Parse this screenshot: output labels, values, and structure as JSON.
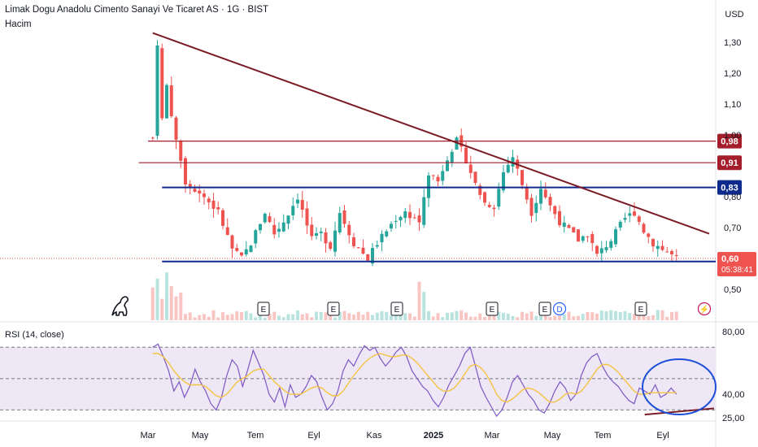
{
  "header": {
    "title": "Limak Dogu Anadolu Cimento Sanayi Ve Ticaret AS · 1G · BIST",
    "volume_label": "Hacim",
    "currency": "USD",
    "rsi_label": "RSI (14, close)"
  },
  "colors": {
    "up": "#26a69a",
    "down": "#ef5350",
    "trendline": "#7b1a25",
    "resistance": "#a31e2a",
    "support": "#0d2a8c",
    "rsi_line": "#7e57c2",
    "rsi_ma": "#f6c343",
    "rsi_band": "#ede7f6",
    "circle": "#1e4fd8"
  },
  "event_markers": [
    {
      "letter": "E",
      "x": "Jun 2024"
    },
    {
      "letter": "E",
      "x": "Aug 2024"
    },
    {
      "letter": "E",
      "x": "Oct 2024"
    },
    {
      "letter": "E",
      "x": "Mar 2025"
    },
    {
      "letter": "E",
      "x": "May 2025"
    },
    {
      "letter": "D",
      "x": "May 2025"
    },
    {
      "letter": "E",
      "x": "Aug 2025"
    },
    {
      "letter": "⚡",
      "x": "Oct 2025"
    }
  ],
  "chart_data": [
    {
      "type": "candlestick",
      "name": "price",
      "currency": "USD",
      "x_ticks": [
        "Mar",
        "May",
        "Tem",
        "Eyl",
        "Kas",
        "2025",
        "Mar",
        "May",
        "Tem",
        "Eyl"
      ],
      "y_ticks": [
        "1,30",
        "1,20",
        "1,10",
        "1,00",
        "0,90",
        "0,80",
        "0,70",
        "0,60",
        "0,50"
      ],
      "ylim": [
        0.52,
        1.33
      ],
      "close_path": [
        [
          0,
          0.68
        ],
        [
          2,
          1.3
        ],
        [
          3,
          1.05
        ],
        [
          4,
          1.16
        ],
        [
          6,
          0.98
        ],
        [
          8,
          0.85
        ],
        [
          12,
          0.8
        ],
        [
          15,
          0.75
        ],
        [
          18,
          0.63
        ],
        [
          20,
          0.6
        ],
        [
          22,
          0.65
        ],
        [
          25,
          0.75
        ],
        [
          27,
          0.68
        ],
        [
          29,
          0.72
        ],
        [
          32,
          0.8
        ],
        [
          35,
          0.66
        ],
        [
          37,
          0.68
        ],
        [
          39,
          0.64
        ],
        [
          41,
          0.75
        ],
        [
          44,
          0.65
        ],
        [
          47,
          0.6
        ],
        [
          49,
          0.65
        ],
        [
          53,
          0.73
        ],
        [
          55,
          0.75
        ],
        [
          58,
          0.72
        ],
        [
          60,
          0.88
        ],
        [
          62,
          0.85
        ],
        [
          64,
          0.93
        ],
        [
          66,
          0.98
        ],
        [
          68,
          0.92
        ],
        [
          70,
          0.84
        ],
        [
          72,
          0.78
        ],
        [
          74,
          0.77
        ],
        [
          76,
          0.88
        ],
        [
          78,
          0.93
        ],
        [
          80,
          0.84
        ],
        [
          82,
          0.75
        ],
        [
          84,
          0.83
        ],
        [
          86,
          0.77
        ],
        [
          88,
          0.72
        ],
        [
          90,
          0.69
        ],
        [
          92,
          0.66
        ],
        [
          94,
          0.68
        ],
        [
          96,
          0.61
        ],
        [
          99,
          0.66
        ],
        [
          102,
          0.73
        ],
        [
          104,
          0.75
        ],
        [
          106,
          0.69
        ],
        [
          108,
          0.65
        ],
        [
          110,
          0.63
        ],
        [
          113,
          0.6
        ]
      ],
      "trendline": {
        "from": [
          1,
          1.33
        ],
        "to": [
          120,
          0.68
        ]
      },
      "horizontal_levels": [
        {
          "value": 0.98,
          "label": "0,98",
          "kind": "resistance",
          "from": 0
        },
        {
          "value": 0.91,
          "label": "0,91",
          "kind": "resistance",
          "from": -2
        },
        {
          "value": 0.83,
          "label": "0,83",
          "kind": "support",
          "from": 3
        },
        {
          "value": 0.59,
          "label": "0,59",
          "kind": "support",
          "from": 3
        }
      ],
      "last_price": {
        "value": 0.6,
        "label": "0,60",
        "countdown": "05:38:41"
      }
    },
    {
      "type": "line",
      "name": "RSI (14, close)",
      "y_ticks": [
        "80,00",
        "40,00",
        "25,00"
      ],
      "levels": [
        70,
        50,
        30
      ],
      "ylim": [
        20,
        80
      ],
      "series": [
        {
          "name": "RSI",
          "values": [
            70,
            72,
            64,
            55,
            42,
            48,
            38,
            45,
            56,
            48,
            42,
            34,
            30,
            38,
            52,
            62,
            58,
            45,
            56,
            68,
            60,
            52,
            40,
            35,
            44,
            32,
            46,
            38,
            40,
            45,
            52,
            48,
            38,
            30,
            34,
            42,
            55,
            62,
            58,
            65,
            71,
            68,
            70,
            63,
            58,
            62,
            67,
            70,
            64,
            55,
            50,
            45,
            42,
            36,
            32,
            38,
            46,
            52,
            58,
            66,
            70,
            58,
            45,
            38,
            32,
            26,
            30,
            38,
            48,
            52,
            46,
            40,
            36,
            30,
            28,
            34,
            42,
            48,
            44,
            36,
            40,
            52,
            60,
            64,
            66,
            58,
            52,
            48,
            45,
            40,
            36,
            34,
            44,
            42,
            40,
            46,
            38,
            40,
            44,
            40
          ]
        },
        {
          "name": "MA",
          "values": [
            66,
            66,
            64,
            60,
            55,
            51,
            48,
            46,
            46,
            46,
            45,
            42,
            39,
            38,
            40,
            44,
            48,
            50,
            52,
            55,
            56,
            56,
            52,
            48,
            45,
            42,
            40,
            40,
            40,
            42,
            44,
            45,
            44,
            41,
            39,
            39,
            42,
            47,
            52,
            56,
            60,
            63,
            65,
            66,
            65,
            64,
            64,
            65,
            65,
            63,
            60,
            56,
            52,
            48,
            44,
            42,
            42,
            44,
            48,
            53,
            58,
            59,
            57,
            53,
            47,
            40,
            36,
            35,
            37,
            40,
            43,
            44,
            43,
            41,
            38,
            35,
            35,
            37,
            40,
            41,
            40,
            42,
            46,
            51,
            56,
            59,
            59,
            57,
            54,
            50,
            46,
            42,
            40,
            40,
            41,
            41,
            41,
            41,
            41,
            41
          ]
        }
      ],
      "divergence_line": {
        "from": [
          93,
          27
        ],
        "to": [
          99,
          31
        ]
      }
    }
  ]
}
